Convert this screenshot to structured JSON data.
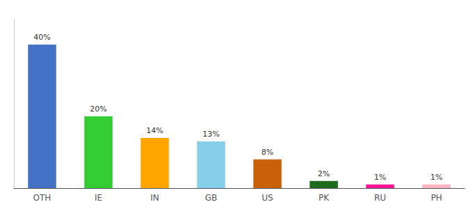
{
  "chart_data": {
    "type": "bar",
    "categories": [
      "OTH",
      "IE",
      "IN",
      "GB",
      "US",
      "PK",
      "RU",
      "PH"
    ],
    "values": [
      40,
      20,
      14,
      13,
      8,
      2,
      1,
      1
    ],
    "value_labels": [
      "40%",
      "20%",
      "14%",
      "13%",
      "8%",
      "2%",
      "1%",
      "1%"
    ],
    "colors": [
      "#4472C4",
      "#33CC33",
      "#FFA500",
      "#87CEEB",
      "#C8620A",
      "#1E6B1E",
      "#FF1493",
      "#FFB6C1"
    ],
    "ylim": [
      0,
      47
    ],
    "data_labels": true,
    "tick_labels": "x",
    "grid": false
  }
}
